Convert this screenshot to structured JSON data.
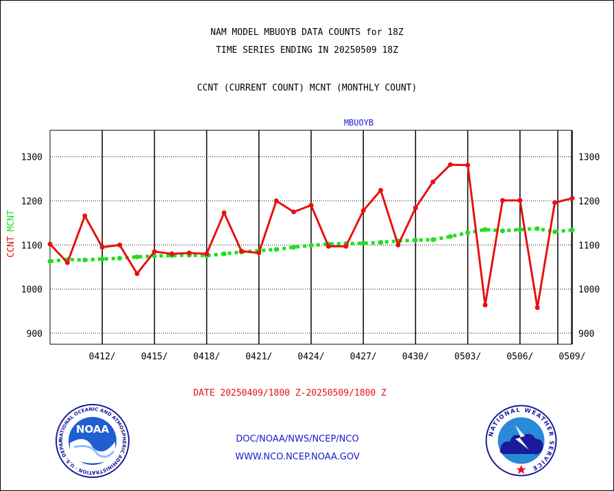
{
  "header": {
    "line1": "NAM MODEL MBUOYB DATA COUNTS for 18Z",
    "line2": "TIME SERIES ENDING IN 20250509 18Z",
    "line3": "CCNT (CURRENT COUNT) MCNT (MONTHLY COUNT)"
  },
  "footer": {
    "date_range": "DATE 20250409/1800 Z-20250509/1800 Z",
    "org": "DOC/NOAA/NWS/NCEP/NCO",
    "url": "WWW.NCO.NCEP.NOAA.GOV"
  },
  "logos": {
    "noaa_text": "NOAA",
    "noaa_ring": "NATIONAL OCEANIC AND ATMOSPHERIC ADMINISTRATION · U.S. DEPARTMENT OF COMMERCE",
    "nws_ring": "NATIONAL WEATHER SERVICE"
  },
  "colors": {
    "ccnt": "#e81010",
    "mcnt": "#22dd22",
    "title": "#1a1ad0",
    "grid": "#000000"
  },
  "chart_data": {
    "type": "line",
    "title": "MBUOYB",
    "ylabel_ccnt": "CCNT",
    "ylabel_mcnt": "MCNT",
    "ylim": [
      875,
      1360
    ],
    "yticks": [
      900,
      1000,
      1100,
      1200,
      1300
    ],
    "x": [
      "20250409",
      "20250410",
      "20250411",
      "20250412",
      "20250413",
      "20250414",
      "20250415",
      "20250416",
      "20250417",
      "20250418",
      "20250419",
      "20250420",
      "20250421",
      "20250422",
      "20250423",
      "20250424",
      "20250425",
      "20250426",
      "20250427",
      "20250428",
      "20250429",
      "20250430",
      "20250501",
      "20250502",
      "20250503",
      "20250504",
      "20250505",
      "20250506",
      "20250507",
      "20250508",
      "20250509"
    ],
    "xticks": [
      "0412/",
      "0415/",
      "0418/",
      "0421/",
      "0424/",
      "0427/",
      "0430/",
      "0503/",
      "0506/",
      "0509/"
    ],
    "xtick_days": [
      3,
      6,
      9,
      12,
      15,
      18,
      21,
      24,
      27,
      30
    ],
    "series": [
      {
        "name": "CCNT",
        "values": [
          1102,
          1060,
          1166,
          1095,
          1100,
          1035,
          1085,
          1080,
          1082,
          1080,
          1173,
          1086,
          1082,
          1200,
          1175,
          1190,
          1097,
          1097,
          1178,
          1224,
          1100,
          1184,
          1243,
          1282,
          1281,
          964,
          1201,
          1201,
          958,
          1196,
          1206
        ]
      },
      {
        "name": "MCNT",
        "values": [
          1063,
          1067,
          1066,
          1068,
          1070,
          1073,
          1075,
          1076,
          1077,
          1076,
          1080,
          1084,
          1087,
          1090,
          1095,
          1099,
          1102,
          1103,
          1104,
          1106,
          1109,
          1111,
          1112,
          1119,
          1128,
          1135,
          1132,
          1135,
          1137,
          1130,
          1134
        ]
      }
    ]
  }
}
